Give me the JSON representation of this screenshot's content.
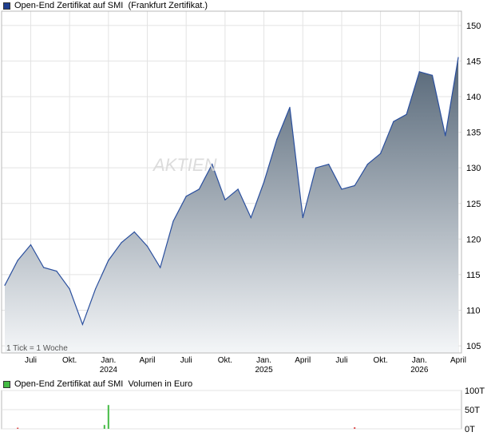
{
  "price_chart": {
    "legend_label": "Open-End Zertifikat auf SMI  (Frankfurt Zertifikat.)",
    "legend_color": "#1f3f8f",
    "line_color": "#2a4f9e",
    "fill_top_color": "#556677",
    "fill_bottom_color": "#f4f6f8",
    "note": "1 Tick = 1 Woche",
    "watermark": "AKTIEN",
    "y_ticks": [
      "150",
      "145",
      "140",
      "135",
      "130",
      "125",
      "120",
      "115",
      "110",
      "105"
    ],
    "x_ticks": [
      {
        "label": "Juli",
        "year": ""
      },
      {
        "label": "Okt.",
        "year": ""
      },
      {
        "label": "Jan.",
        "year": "2024"
      },
      {
        "label": "April",
        "year": ""
      },
      {
        "label": "Juli",
        "year": ""
      },
      {
        "label": "Okt.",
        "year": ""
      },
      {
        "label": "Jan.",
        "year": "2025"
      },
      {
        "label": "April",
        "year": ""
      },
      {
        "label": "Juli",
        "year": ""
      },
      {
        "label": "Okt.",
        "year": ""
      },
      {
        "label": "Jan.",
        "year": "2026"
      },
      {
        "label": "April",
        "year": ""
      }
    ]
  },
  "volume_chart": {
    "legend_label": "Open-End Zertifikat auf SMI  Volumen in Euro",
    "legend_color": "#44bb44",
    "y_ticks": [
      "100T",
      "50T",
      "0T"
    ]
  },
  "chart_data": [
    {
      "type": "area",
      "title": "Open-End Zertifikat auf SMI  (Frankfurt Zertifikat.)",
      "x_unit": "week",
      "ylim": [
        104,
        152
      ],
      "x": [
        "2023-05",
        "2023-06",
        "2023-07",
        "2023-08",
        "2023-09",
        "2023-10",
        "2023-11",
        "2023-12",
        "2024-01",
        "2024-02",
        "2024-03",
        "2024-04",
        "2024-05",
        "2024-06",
        "2024-07",
        "2024-08",
        "2024-09",
        "2024-10",
        "2024-11",
        "2024-12",
        "2025-01",
        "2025-02",
        "2025-03",
        "2025-04",
        "2025-05",
        "2025-06",
        "2025-07",
        "2025-08",
        "2025-09",
        "2025-10",
        "2025-11",
        "2025-12",
        "2026-01",
        "2026-02",
        "2026-03",
        "2026-04"
      ],
      "series": [
        {
          "name": "Open-End Zertifikat auf SMI",
          "values": [
            113.5,
            117.0,
            119.2,
            116.0,
            115.5,
            113.0,
            108.0,
            113.0,
            117.0,
            119.5,
            121.0,
            119.0,
            116.0,
            122.5,
            126.0,
            127.0,
            130.5,
            125.5,
            127.0,
            123.0,
            128.0,
            134.0,
            138.5,
            123.0,
            130.0,
            130.5,
            127.0,
            127.5,
            130.5,
            132.0,
            136.5,
            137.5,
            143.5,
            143.0,
            134.5,
            145.5
          ]
        }
      ]
    },
    {
      "type": "bar",
      "title": "Open-End Zertifikat auf SMI  Volumen in Euro",
      "ylim": [
        0,
        100
      ],
      "y_unit": "T",
      "bars": [
        {
          "x": "2023-06",
          "value": 3,
          "color": "#dd4444"
        },
        {
          "x": "2024-01",
          "value": 10,
          "color": "#44bb44"
        },
        {
          "x": "2024-01",
          "value": 62,
          "color": "#44bb44"
        },
        {
          "x": "2025-08",
          "value": 4,
          "color": "#dd4444"
        }
      ]
    }
  ]
}
